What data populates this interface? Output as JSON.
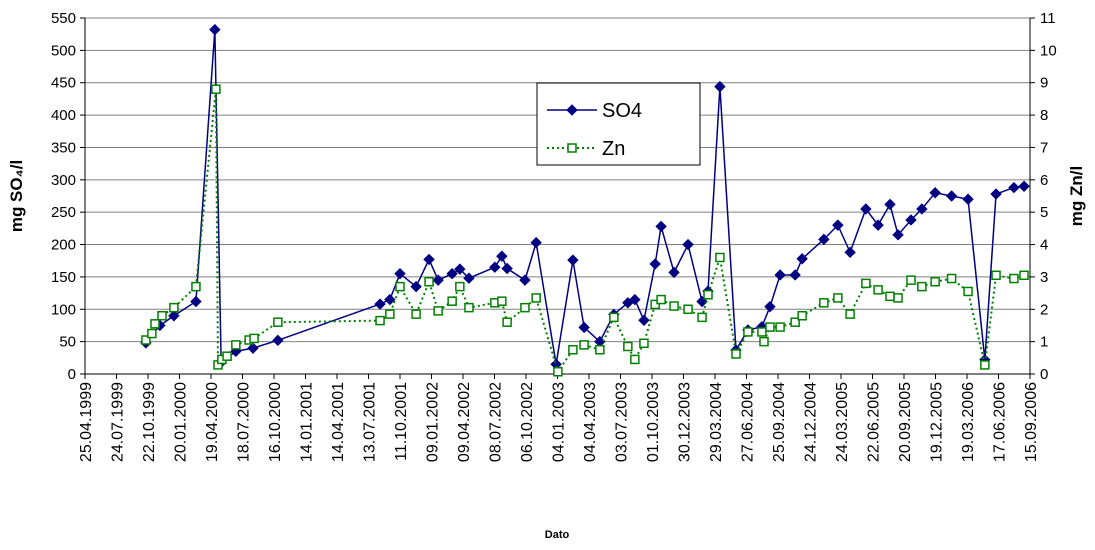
{
  "chart_data": {
    "type": "line",
    "xlabel": "Dato",
    "ylabel": "mg SO₄/l",
    "y2label": "mg Zn/l",
    "xlim": [
      "25.04.1999",
      "15.09.2006"
    ],
    "xticks": [
      "25.04.1999",
      "24.07.1999",
      "22.10.1999",
      "20.01.2000",
      "19.04.2000",
      "18.07.2000",
      "16.10.2000",
      "14.01.2001",
      "14.04.2001",
      "13.07.2001",
      "11.10.2001",
      "09.01.2002",
      "09.04.2002",
      "08.07.2002",
      "06.10.2002",
      "04.01.2003",
      "04.04.2003",
      "03.07.2003",
      "01.10.2003",
      "30.12.2003",
      "29.03.2004",
      "27.06.2004",
      "25.09.2004",
      "24.12.2004",
      "24.03.2005",
      "22.06.2005",
      "20.09.2005",
      "19.12.2005",
      "19.03.2006",
      "17.06.2006",
      "15.09.2006"
    ],
    "ylim": [
      0,
      550
    ],
    "yticks": [
      0,
      50,
      100,
      150,
      200,
      250,
      300,
      350,
      400,
      450,
      500,
      550
    ],
    "y2lim": [
      0,
      11
    ],
    "y2ticks": [
      0,
      1,
      2,
      3,
      4,
      5,
      6,
      7,
      8,
      9,
      10,
      11
    ],
    "grid": true,
    "legend": "upper center",
    "series": [
      {
        "name": "SO4",
        "color": "#000080",
        "marker": "diamond",
        "dash": "solid",
        "x": [
          "16.10.1999",
          "25.11.1999",
          "04.01.2000",
          "07.03.2000",
          "30.04.2000",
          "18.05.2000",
          "29.06.2000",
          "17.08.2000",
          "27.10.2000",
          "15.08.2001",
          "12.09.2001",
          "11.10.2001",
          "26.11.2001",
          "02.01.2002",
          "28.01.2002",
          "09.03.2002",
          "31.03.2002",
          "26.04.2002",
          "09.07.2002",
          "29.07.2002",
          "13.08.2002",
          "03.10.2002",
          "04.11.2002",
          "31.12.2002",
          "17.02.2003",
          "21.03.2003",
          "05.05.2003",
          "14.06.2003",
          "24.07.2003",
          "13.08.2003",
          "08.09.2003",
          "10.10.2003",
          "27.10.2003",
          "03.12.2003",
          "12.01.2004",
          "21.02.2004",
          "09.03.2004",
          "12.04.2004",
          "28.05.2004",
          "01.07.2004",
          "10.08.2004",
          "02.09.2004",
          "01.10.2004",
          "13.11.2004",
          "03.12.2004",
          "03.02.2005",
          "15.03.2005",
          "19.04.2005",
          "03.06.2005",
          "08.07.2005",
          "11.08.2005",
          "03.09.2005",
          "10.10.2005",
          "10.11.2005",
          "18.12.2005",
          "03.02.2006",
          "22.03.2006",
          "09.05.2006",
          "10.06.2006",
          "31.07.2006",
          "29.08.2006"
        ],
        "values": [
          48,
          75,
          90,
          112,
          532,
          18,
          35,
          40,
          52,
          108,
          115,
          155,
          135,
          177,
          145,
          155,
          162,
          148,
          165,
          182,
          163,
          145,
          203,
          15,
          176,
          72,
          50,
          92,
          110,
          115,
          83,
          170,
          228,
          157,
          200,
          112,
          128,
          444,
          37,
          68,
          73,
          104,
          153,
          153,
          178,
          208,
          230,
          188,
          255,
          230,
          262,
          215,
          238,
          255,
          280,
          275,
          270,
          22,
          278,
          288,
          290
        ]
      },
      {
        "name": "Zn",
        "color": "#008000",
        "marker": "square",
        "dash": "dotted",
        "axis": "y2",
        "x": [
          "16.10.1999",
          "02.11.1999",
          "11.11.1999",
          "01.12.1999",
          "04.01.2000",
          "07.03.2000",
          "03.05.2000",
          "09.05.2000",
          "20.05.2000",
          "04.06.2000",
          "29.06.2000",
          "06.08.2000",
          "20.08.2000",
          "27.10.2000",
          "15.08.2001",
          "12.09.2001",
          "11.10.2001",
          "26.11.2001",
          "02.01.2002",
          "28.01.2002",
          "09.03.2002",
          "31.03.2002",
          "26.04.2002",
          "09.07.2002",
          "29.07.2002",
          "13.08.2002",
          "03.10.2002",
          "04.11.2002",
          "05.01.2003",
          "17.02.2003",
          "21.03.2003",
          "05.05.2003",
          "14.06.2003",
          "24.07.2003",
          "13.08.2003",
          "08.09.2003",
          "10.10.2003",
          "27.10.2003",
          "03.12.2003",
          "12.01.2004",
          "21.02.2004",
          "09.03.2004",
          "12.04.2004",
          "28.05.2004",
          "01.07.2004",
          "10.08.2004",
          "16.08.2004",
          "02.09.2004",
          "01.10.2004",
          "13.11.2004",
          "03.12.2004",
          "03.02.2005",
          "15.03.2005",
          "19.04.2005",
          "03.06.2005",
          "08.07.2005",
          "11.08.2005",
          "03.09.2005",
          "10.10.2005",
          "10.11.2005",
          "18.12.2005",
          "03.02.2006",
          "22.03.2006",
          "09.05.2006",
          "10.06.2006",
          "31.07.2006",
          "29.08.2006"
        ],
        "values": [
          1.05,
          1.25,
          1.55,
          1.8,
          2.05,
          2.7,
          8.8,
          0.28,
          0.45,
          0.55,
          0.9,
          1.05,
          1.1,
          1.6,
          1.65,
          1.85,
          2.7,
          1.85,
          2.85,
          1.95,
          2.25,
          2.7,
          2.05,
          2.2,
          2.25,
          1.6,
          2.05,
          2.35,
          0.07,
          0.75,
          0.9,
          0.75,
          1.75,
          0.85,
          0.45,
          0.95,
          2.15,
          2.3,
          2.1,
          2.0,
          1.75,
          2.45,
          3.6,
          0.62,
          1.3,
          1.3,
          1.0,
          1.45,
          1.45,
          1.6,
          1.8,
          2.2,
          2.35,
          1.85,
          2.8,
          2.6,
          2.4,
          2.35,
          2.9,
          2.7,
          2.85,
          2.95,
          2.55,
          0.28,
          3.05,
          2.95,
          3.05
        ]
      }
    ]
  }
}
